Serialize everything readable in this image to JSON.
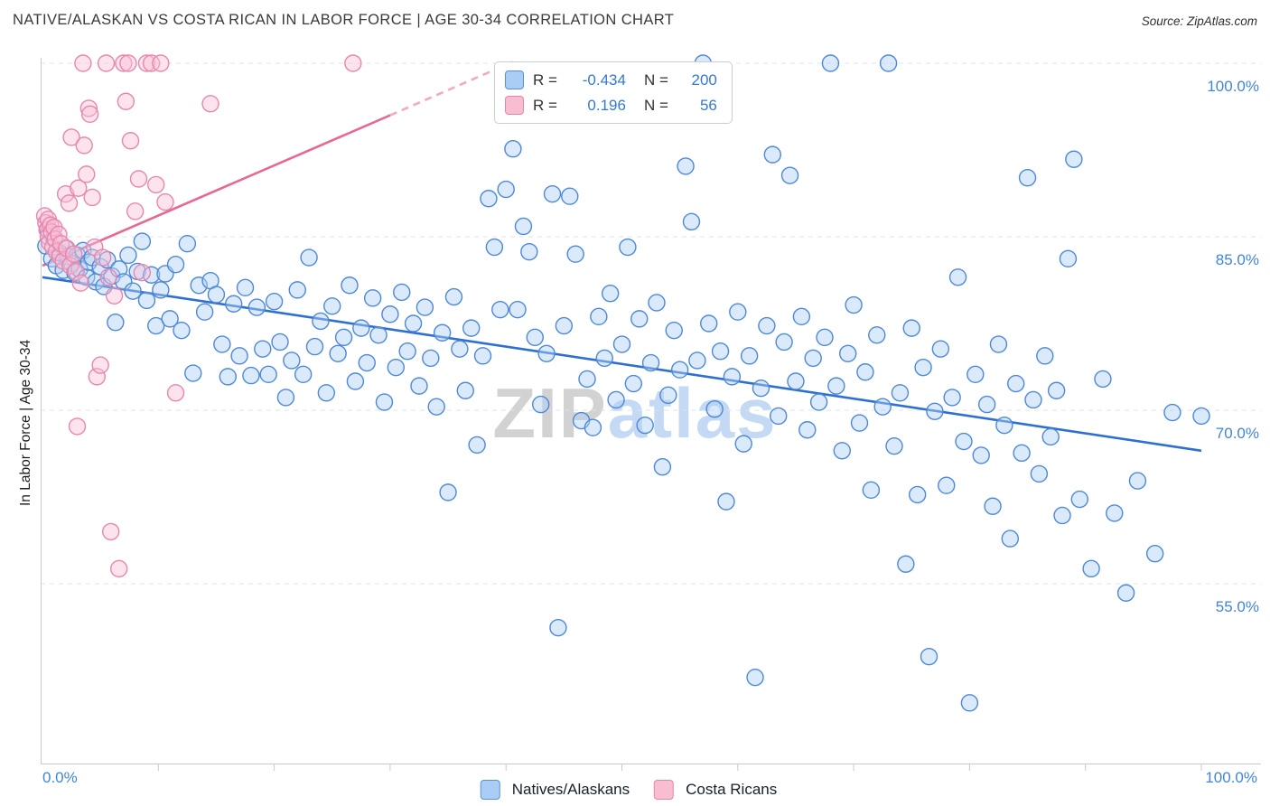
{
  "header": {
    "title": "NATIVE/ALASKAN VS COSTA RICAN IN LABOR FORCE | AGE 30-34 CORRELATION CHART",
    "source": "Source: ZipAtlas.com"
  },
  "watermark": {
    "part1": "ZIP",
    "part2": "atlas"
  },
  "axes": {
    "y_label": "In Labor Force | Age 30-34",
    "y_ticks": [
      "100.0%",
      "85.0%",
      "70.0%",
      "55.0%"
    ],
    "x_tick_left": "0.0%",
    "x_tick_right": "100.0%"
  },
  "legend_box": {
    "rows": [
      {
        "r_label": "R =",
        "r_value": "-0.434",
        "n_label": "N =",
        "n_value": "200"
      },
      {
        "r_label": "R =",
        "r_value": "0.196",
        "n_label": "N =",
        "n_value": "56"
      }
    ]
  },
  "bottom_legend": {
    "items": [
      {
        "label": "Natives/Alaskans"
      },
      {
        "label": "Costa Ricans"
      }
    ]
  },
  "colors": {
    "blue_fill": "#b0d0f5",
    "blue_stroke": "#4e88d8",
    "blue_trend": "#2e6fd2",
    "pink_fill": "#f9c2d6",
    "pink_stroke": "#e887ac",
    "pink_trend": "#e76795",
    "pink_trend_dashed": "#f2a9c4",
    "axis_label_blue": "#4285d6",
    "gridline": "#dfe4ea"
  },
  "chart_data": {
    "type": "scatter",
    "title": "NATIVE/ALASKAN VS COSTA RICAN IN LABOR FORCE | AGE 30-34 CORRELATION CHART",
    "xlabel": "",
    "ylabel": "In Labor Force | Age 30-34",
    "units": "percent",
    "xlim": [
      0,
      100
    ],
    "ylim": [
      39.5,
      102.5
    ],
    "y_tick_values": [
      100,
      85,
      70,
      55
    ],
    "y_tick_labels": [
      "100.0%",
      "85.0%",
      "70.0%",
      "55.0%"
    ],
    "x_tick_labels": [
      "0.0%",
      "100.0%"
    ],
    "grid": "horizontal-dashed",
    "legend_position": "bottom-center",
    "series": [
      {
        "name": "Natives/Alaskans",
        "R": -0.434,
        "N": 200,
        "fill": "#b0d0f5",
        "stroke": "#4e88d8",
        "points": [
          [
            0.3,
            84.2
          ],
          [
            0.5,
            85.6
          ],
          [
            0.8,
            83.1
          ],
          [
            1.0,
            84.8
          ],
          [
            1.2,
            82.5
          ],
          [
            1.5,
            83.6
          ],
          [
            1.8,
            82.1
          ],
          [
            2.0,
            84.0
          ],
          [
            2.2,
            83.3
          ],
          [
            2.5,
            82.7
          ],
          [
            2.8,
            81.9
          ],
          [
            3.0,
            83.4
          ],
          [
            3.2,
            82.2
          ],
          [
            3.5,
            83.8
          ],
          [
            3.8,
            81.5
          ],
          [
            4.0,
            82.8
          ],
          [
            4.3,
            83.2
          ],
          [
            4.6,
            81.1
          ],
          [
            5.0,
            82.4
          ],
          [
            5.3,
            80.7
          ],
          [
            5.6,
            83.0
          ],
          [
            6.0,
            81.6
          ],
          [
            6.3,
            77.6
          ],
          [
            6.6,
            82.2
          ],
          [
            7.0,
            81.1
          ],
          [
            7.4,
            83.4
          ],
          [
            7.8,
            80.3
          ],
          [
            8.2,
            82.0
          ],
          [
            8.6,
            84.6
          ],
          [
            9.0,
            79.5
          ],
          [
            9.4,
            81.7
          ],
          [
            9.8,
            77.3
          ],
          [
            10.2,
            80.4
          ],
          [
            10.6,
            81.8
          ],
          [
            11.0,
            77.9
          ],
          [
            11.5,
            82.6
          ],
          [
            12.0,
            76.9
          ],
          [
            12.5,
            84.4
          ],
          [
            13.0,
            73.2
          ],
          [
            13.5,
            80.8
          ],
          [
            14.0,
            78.5
          ],
          [
            14.5,
            81.2
          ],
          [
            15.0,
            80.0
          ],
          [
            15.5,
            75.7
          ],
          [
            16.0,
            72.9
          ],
          [
            16.5,
            79.2
          ],
          [
            17.0,
            74.7
          ],
          [
            17.5,
            80.6
          ],
          [
            18.0,
            73.0
          ],
          [
            18.5,
            78.9
          ],
          [
            19.0,
            75.3
          ],
          [
            19.5,
            73.1
          ],
          [
            20.0,
            79.4
          ],
          [
            20.5,
            75.9
          ],
          [
            21.0,
            71.1
          ],
          [
            21.5,
            74.3
          ],
          [
            22.0,
            80.4
          ],
          [
            22.5,
            73.1
          ],
          [
            23.0,
            83.2
          ],
          [
            23.5,
            75.5
          ],
          [
            24.0,
            77.7
          ],
          [
            24.5,
            71.5
          ],
          [
            25.0,
            79.0
          ],
          [
            25.5,
            74.9
          ],
          [
            26.0,
            76.3
          ],
          [
            26.5,
            80.8
          ],
          [
            27.0,
            72.5
          ],
          [
            27.5,
            77.1
          ],
          [
            28.0,
            74.1
          ],
          [
            28.5,
            79.7
          ],
          [
            29.0,
            76.5
          ],
          [
            29.5,
            70.7
          ],
          [
            30.0,
            78.3
          ],
          [
            30.5,
            73.7
          ],
          [
            31.0,
            80.2
          ],
          [
            31.5,
            75.1
          ],
          [
            32.0,
            77.5
          ],
          [
            32.5,
            72.1
          ],
          [
            33.0,
            78.9
          ],
          [
            33.5,
            74.5
          ],
          [
            34.0,
            70.3
          ],
          [
            34.5,
            76.7
          ],
          [
            35.0,
            62.9
          ],
          [
            35.5,
            79.8
          ],
          [
            36.0,
            75.3
          ],
          [
            36.5,
            71.7
          ],
          [
            37.0,
            77.1
          ],
          [
            37.5,
            67.0
          ],
          [
            38.0,
            74.7
          ],
          [
            38.5,
            88.3
          ],
          [
            39.0,
            84.1
          ],
          [
            39.5,
            78.7
          ],
          [
            40.0,
            89.1
          ],
          [
            40.6,
            92.6
          ],
          [
            41.0,
            78.7
          ],
          [
            41.5,
            85.9
          ],
          [
            42.0,
            83.7
          ],
          [
            42.5,
            76.3
          ],
          [
            43.0,
            70.5
          ],
          [
            43.5,
            74.9
          ],
          [
            44.0,
            88.7
          ],
          [
            44.5,
            51.2
          ],
          [
            45.0,
            77.3
          ],
          [
            45.5,
            88.5
          ],
          [
            46.0,
            83.5
          ],
          [
            46.5,
            69.1
          ],
          [
            47.0,
            72.7
          ],
          [
            47.5,
            68.5
          ],
          [
            48.0,
            78.1
          ],
          [
            48.5,
            74.5
          ],
          [
            49.0,
            80.1
          ],
          [
            49.5,
            70.9
          ],
          [
            50.0,
            75.7
          ],
          [
            50.5,
            84.1
          ],
          [
            51.0,
            72.3
          ],
          [
            51.5,
            77.9
          ],
          [
            52.0,
            68.7
          ],
          [
            52.5,
            74.1
          ],
          [
            53.0,
            79.3
          ],
          [
            53.5,
            65.1
          ],
          [
            54.0,
            71.3
          ],
          [
            54.5,
            76.9
          ],
          [
            55.0,
            73.5
          ],
          [
            55.5,
            91.1
          ],
          [
            56.0,
            86.3
          ],
          [
            56.5,
            74.3
          ],
          [
            57.0,
            100.0
          ],
          [
            57.5,
            77.5
          ],
          [
            58.0,
            70.1
          ],
          [
            58.5,
            75.1
          ],
          [
            59.0,
            62.1
          ],
          [
            59.5,
            72.9
          ],
          [
            60.0,
            78.5
          ],
          [
            60.5,
            67.1
          ],
          [
            61.0,
            74.7
          ],
          [
            61.5,
            46.9
          ],
          [
            62.0,
            71.9
          ],
          [
            62.5,
            77.3
          ],
          [
            63.0,
            92.1
          ],
          [
            63.5,
            69.5
          ],
          [
            64.0,
            75.9
          ],
          [
            64.5,
            90.3
          ],
          [
            65.0,
            72.5
          ],
          [
            65.5,
            78.1
          ],
          [
            66.0,
            68.3
          ],
          [
            66.5,
            74.5
          ],
          [
            67.0,
            70.7
          ],
          [
            67.5,
            76.3
          ],
          [
            68.0,
            100.0
          ],
          [
            68.5,
            72.1
          ],
          [
            69.0,
            66.5
          ],
          [
            69.5,
            74.9
          ],
          [
            70.0,
            79.1
          ],
          [
            70.5,
            68.9
          ],
          [
            71.0,
            73.3
          ],
          [
            71.5,
            63.1
          ],
          [
            72.0,
            76.5
          ],
          [
            72.5,
            70.3
          ],
          [
            73.0,
            100.0
          ],
          [
            73.5,
            66.9
          ],
          [
            74.0,
            71.5
          ],
          [
            74.5,
            56.7
          ],
          [
            75.0,
            77.1
          ],
          [
            75.5,
            62.7
          ],
          [
            76.0,
            73.7
          ],
          [
            76.5,
            48.7
          ],
          [
            77.0,
            69.9
          ],
          [
            77.5,
            75.3
          ],
          [
            78.0,
            63.5
          ],
          [
            78.5,
            71.1
          ],
          [
            79.0,
            81.5
          ],
          [
            79.5,
            67.3
          ],
          [
            80.0,
            44.7
          ],
          [
            80.5,
            73.1
          ],
          [
            81.0,
            66.1
          ],
          [
            81.5,
            70.5
          ],
          [
            82.0,
            61.7
          ],
          [
            82.5,
            75.7
          ],
          [
            83.0,
            68.7
          ],
          [
            83.5,
            58.9
          ],
          [
            84.0,
            72.3
          ],
          [
            84.5,
            66.3
          ],
          [
            85.0,
            90.1
          ],
          [
            85.5,
            70.9
          ],
          [
            86.0,
            64.5
          ],
          [
            86.5,
            74.7
          ],
          [
            87.0,
            67.7
          ],
          [
            87.5,
            71.7
          ],
          [
            88.0,
            60.9
          ],
          [
            88.5,
            83.1
          ],
          [
            89.0,
            91.7
          ],
          [
            89.5,
            62.3
          ],
          [
            90.5,
            56.3
          ],
          [
            91.5,
            72.7
          ],
          [
            92.5,
            61.1
          ],
          [
            93.5,
            54.2
          ],
          [
            94.5,
            63.9
          ],
          [
            96.0,
            57.6
          ],
          [
            97.5,
            69.8
          ],
          [
            100.0,
            69.5
          ]
        ]
      },
      {
        "name": "Costa Ricans",
        "R": 0.196,
        "N": 56,
        "fill": "#f9c2d6",
        "stroke": "#e887ac",
        "points": [
          [
            0.2,
            86.8
          ],
          [
            0.3,
            86.2
          ],
          [
            0.4,
            85.6
          ],
          [
            0.5,
            86.5
          ],
          [
            0.5,
            85.0
          ],
          [
            0.6,
            84.5
          ],
          [
            0.7,
            86.0
          ],
          [
            0.8,
            85.4
          ],
          [
            0.9,
            84.1
          ],
          [
            1.0,
            85.8
          ],
          [
            1.1,
            84.8
          ],
          [
            1.2,
            83.7
          ],
          [
            1.4,
            85.2
          ],
          [
            1.5,
            83.3
          ],
          [
            1.6,
            84.4
          ],
          [
            1.8,
            82.9
          ],
          [
            2.0,
            88.7
          ],
          [
            2.1,
            84.0
          ],
          [
            2.3,
            87.9
          ],
          [
            2.4,
            82.5
          ],
          [
            2.5,
            93.6
          ],
          [
            2.7,
            83.5
          ],
          [
            2.9,
            82.0
          ],
          [
            3.0,
            68.6
          ],
          [
            3.1,
            89.2
          ],
          [
            3.3,
            81.0
          ],
          [
            3.5,
            100.0
          ],
          [
            3.6,
            92.9
          ],
          [
            3.8,
            90.4
          ],
          [
            4.0,
            96.1
          ],
          [
            4.1,
            95.6
          ],
          [
            4.3,
            88.4
          ],
          [
            4.5,
            84.1
          ],
          [
            4.7,
            72.9
          ],
          [
            5.0,
            73.9
          ],
          [
            5.2,
            83.2
          ],
          [
            5.5,
            100.0
          ],
          [
            5.7,
            81.5
          ],
          [
            5.9,
            59.5
          ],
          [
            6.2,
            79.9
          ],
          [
            6.6,
            56.3
          ],
          [
            7.0,
            100.0
          ],
          [
            7.2,
            96.7
          ],
          [
            7.4,
            100.0
          ],
          [
            7.6,
            93.3
          ],
          [
            8.0,
            87.2
          ],
          [
            8.3,
            90.0
          ],
          [
            8.6,
            81.9
          ],
          [
            9.0,
            100.0
          ],
          [
            9.4,
            100.0
          ],
          [
            9.8,
            89.5
          ],
          [
            10.2,
            100.0
          ],
          [
            10.6,
            88.0
          ],
          [
            11.5,
            71.5
          ],
          [
            14.5,
            96.5
          ],
          [
            26.8,
            100.0
          ]
        ]
      }
    ],
    "trend_lines": [
      {
        "name": "costa-ricans-trend-line",
        "series": "Costa Ricans",
        "x1": 0,
        "y1": 82.5,
        "x2": 30,
        "y2": 95.5,
        "style": "solid",
        "color": "#e76795"
      },
      {
        "name": "costa-ricans-trend-extension",
        "series": "Costa Ricans",
        "x1": 30,
        "y1": 95.5,
        "x2": 41,
        "y2": 100.3,
        "style": "dashed",
        "color": "#f2a9c4"
      },
      {
        "name": "natives-trend-line",
        "series": "Natives/Alaskans",
        "x1": 0,
        "y1": 81.5,
        "x2": 100,
        "y2": 66.5,
        "style": "solid",
        "color": "#2e6fd2"
      }
    ]
  }
}
